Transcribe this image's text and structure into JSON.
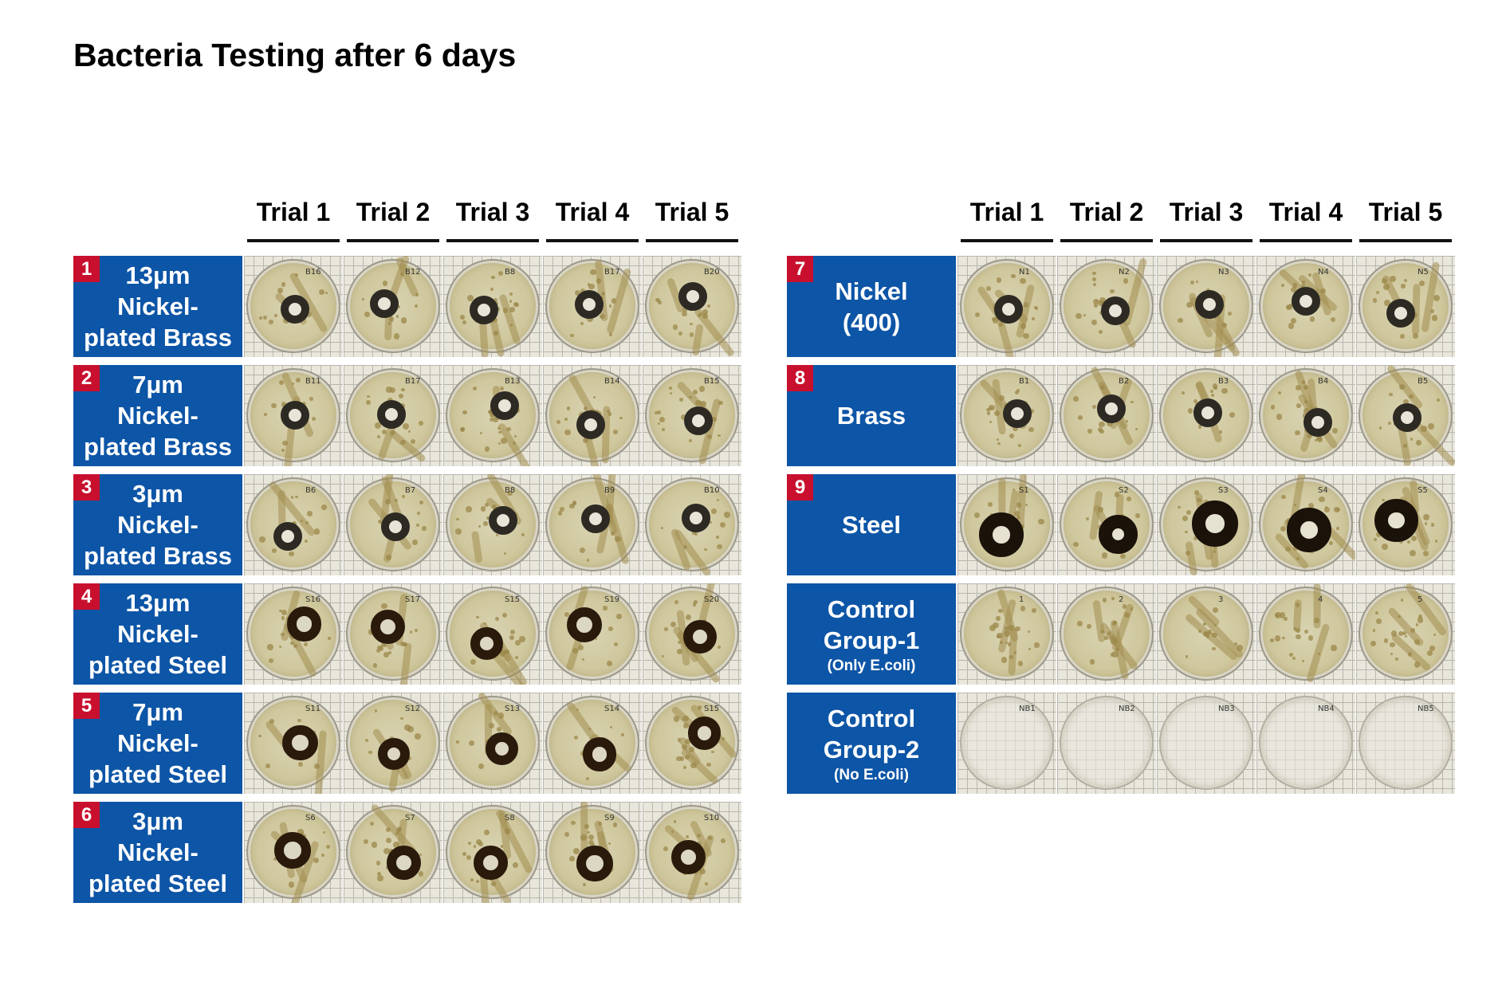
{
  "title": "Bacteria Testing after 6 days",
  "trial_labels": [
    "Trial 1",
    "Trial 2",
    "Trial 3",
    "Trial 4",
    "Trial 5"
  ],
  "left_rows": [
    {
      "number": "1",
      "label": "13μm\nNickel-\nplated Brass",
      "plate_marks": [
        "B16",
        "B12",
        "B8",
        "B17",
        "B20"
      ]
    },
    {
      "number": "2",
      "label": "7μm\nNickel-\nplated Brass",
      "plate_marks": [
        "B11",
        "B17",
        "B13",
        "B14",
        "B15"
      ]
    },
    {
      "number": "3",
      "label": "3μm\nNickel-\nplated Brass",
      "plate_marks": [
        "B6",
        "B7",
        "B8",
        "B9",
        "B10"
      ]
    },
    {
      "number": "4",
      "label": "13μm\nNickel-\nplated Steel",
      "plate_marks": [
        "S16",
        "S17",
        "S15",
        "S19",
        "S20"
      ]
    },
    {
      "number": "5",
      "label": "7μm\nNickel-\nplated Steel",
      "plate_marks": [
        "S11",
        "S12",
        "S13",
        "S14",
        "S15"
      ]
    },
    {
      "number": "6",
      "label": "3μm\nNickel-\nplated Steel",
      "plate_marks": [
        "S6",
        "S7",
        "S8",
        "S9",
        "S10"
      ]
    }
  ],
  "right_rows": [
    {
      "number": "7",
      "label": "Nickel\n(400)",
      "plate_marks": [
        "N1",
        "N2",
        "N3",
        "N4",
        "N5"
      ]
    },
    {
      "number": "8",
      "label": "Brass",
      "plate_marks": [
        "B1",
        "B2",
        "B3",
        "B4",
        "B5"
      ]
    },
    {
      "number": "9",
      "label": "Steel",
      "plate_marks": [
        "S1",
        "S2",
        "S3",
        "S4",
        "S5"
      ]
    },
    {
      "number": "",
      "label": "Control\nGroup-1",
      "sublabel": "(Only E.coli)",
      "plate_marks": [
        "1",
        "2",
        "3",
        "4",
        "5"
      ]
    },
    {
      "number": "",
      "label": "Control\nGroup-2",
      "sublabel": "(No E.coli)",
      "plate_marks": [
        "NB1",
        "NB2",
        "NB3",
        "NB4",
        "NB5"
      ]
    }
  ],
  "colors": {
    "label_bg": "#0d55a6",
    "badge_bg": "#c8102e",
    "plate_grid": "#b9b6ae",
    "colony": "#9b8749"
  }
}
